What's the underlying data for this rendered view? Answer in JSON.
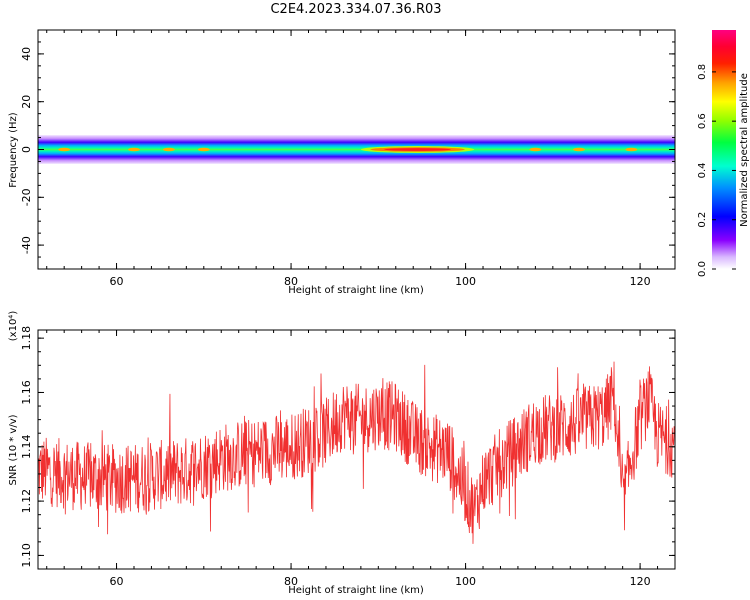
{
  "figure": {
    "title": "C2E4.2023.334.07.36.R03"
  },
  "chart_data": [
    {
      "type": "heatmap",
      "title": "C2E4.2023.334.07.36.R03",
      "xlabel": "Height of straight line (km)",
      "ylabel": "Frequency (Hz)",
      "xlim": [
        51,
        124
      ],
      "ylim": [
        -50,
        50
      ],
      "xticks": [
        60,
        80,
        100,
        120
      ],
      "yticks": [
        40,
        20,
        0,
        -20,
        -40
      ],
      "colorbar": {
        "label": "Normalized spectral amplitude",
        "range": [
          0,
          0.97
        ],
        "ticks": [
          "0.0",
          "0.2",
          "0.4",
          "0.6",
          "0.8"
        ],
        "colormap": "rainbow (white-purple-blue-cyan-green-yellow-orange-red-magenta)"
      },
      "band": {
        "center_frequency_hz": 0,
        "half_width_hz": 4,
        "peak_region_km": [
          88,
          101
        ],
        "peak_amplitude": 0.85
      }
    },
    {
      "type": "line",
      "xlabel": "Height of straight line (km)",
      "ylabel": "SNR (10 * v/v)",
      "y_multiplier": "(x10⁴)",
      "xlim": [
        51,
        124
      ],
      "ylim": [
        1.095,
        1.183
      ],
      "xticks": [
        60,
        80,
        100,
        120
      ],
      "yticks": [
        "1.10",
        "1.12",
        "1.14",
        "1.16",
        "1.18"
      ],
      "line_color": "#f03030",
      "series": [
        {
          "x": [
            52,
            56,
            60,
            64,
            68,
            72,
            76,
            80,
            84,
            86,
            88,
            90,
            92,
            94,
            96,
            98,
            100,
            101,
            102,
            104,
            106,
            108,
            110,
            112,
            114,
            116,
            117,
            118,
            119,
            120,
            121,
            122,
            124
          ],
          "values": [
            1.131,
            1.129,
            1.128,
            1.129,
            1.131,
            1.136,
            1.138,
            1.14,
            1.145,
            1.152,
            1.15,
            1.152,
            1.151,
            1.144,
            1.14,
            1.138,
            1.124,
            1.116,
            1.127,
            1.134,
            1.14,
            1.146,
            1.147,
            1.148,
            1.15,
            1.152,
            1.16,
            1.118,
            1.136,
            1.15,
            1.158,
            1.144,
            1.141
          ]
        }
      ]
    }
  ]
}
